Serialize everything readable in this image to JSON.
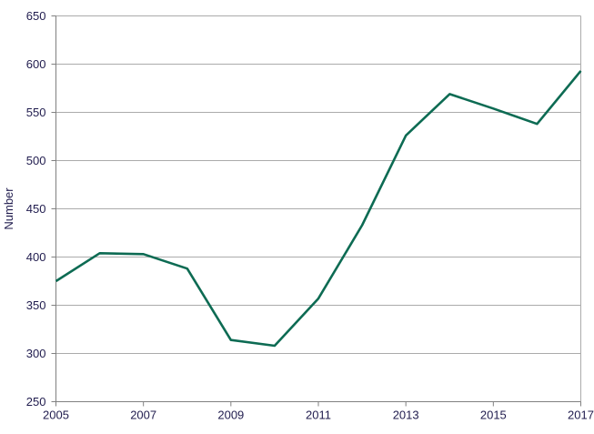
{
  "chart_data": {
    "type": "line",
    "title": "",
    "xlabel": "",
    "ylabel": "Number",
    "x": [
      2005,
      2006,
      2007,
      2008,
      2009,
      2010,
      2011,
      2012,
      2013,
      2014,
      2015,
      2016,
      2017
    ],
    "series": [
      {
        "name": "Number",
        "values": [
          375,
          404,
          403,
          388,
          314,
          308,
          357,
          433,
          526,
          569,
          554,
          538,
          593
        ]
      }
    ],
    "xlim": [
      2005,
      2017
    ],
    "ylim": [
      250,
      650
    ],
    "yticks": [
      250,
      300,
      350,
      400,
      450,
      500,
      550,
      600,
      650
    ],
    "xticks": [
      2005,
      2007,
      2009,
      2011,
      2013,
      2015,
      2017
    ],
    "grid": "horizontal",
    "legend_position": "none",
    "line_color": "#0d6b53",
    "axis_color": "#808080",
    "grid_color": "#ababab",
    "label_color": "#201c4e"
  }
}
